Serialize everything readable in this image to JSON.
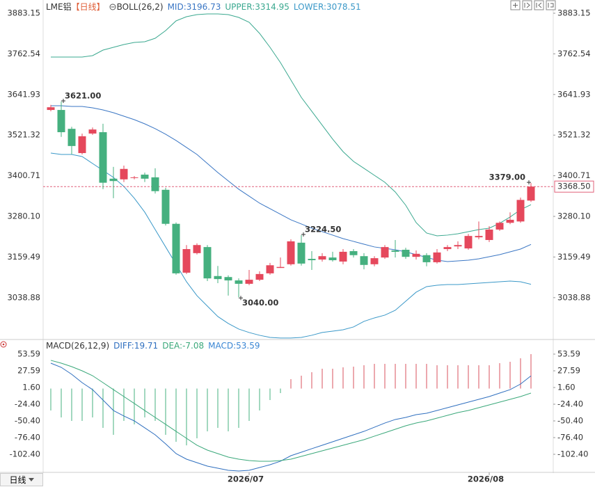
{
  "chart_data": [
    {
      "type": "candlestick",
      "title": "LME铝",
      "period": "【日线】",
      "indicator": "BOLL(26,2)",
      "categories": [
        null,
        null,
        null,
        null,
        null,
        null,
        null,
        null,
        null,
        null,
        null,
        null,
        null,
        null,
        null,
        null,
        null,
        null,
        null,
        "2026/07",
        null,
        null,
        null,
        null,
        null,
        null,
        null,
        null,
        null,
        null,
        null,
        null,
        null,
        null,
        null,
        null,
        null,
        null,
        null,
        null,
        null,
        null,
        "2026/08",
        null,
        null,
        null,
        null
      ],
      "open": [
        3596,
        3596,
        3540,
        3468,
        3526,
        3530,
        3392,
        3390,
        3394,
        3404,
        3396,
        3359,
        3258,
        3113,
        3171,
        3189,
        3103,
        3100,
        3090,
        3080,
        3092,
        3111,
        3127,
        3138,
        3202,
        3154,
        3152,
        3158,
        3146,
        3177,
        3162,
        3138,
        3158,
        3179,
        3181,
        3160,
        3165,
        3144,
        3183,
        3191,
        3185,
        3218,
        3210,
        3241,
        3261,
        3265,
        3327
      ],
      "high": [
        3611,
        3621,
        3546,
        3526,
        3544,
        3555,
        3427,
        3431,
        3400,
        3410,
        3423,
        3365,
        3262,
        3195,
        3200,
        3195,
        3133,
        3105,
        3096,
        3121,
        3117,
        3142,
        3158,
        3212,
        3224.5,
        3177,
        3171,
        3175,
        3183,
        3183,
        3171,
        3162,
        3195,
        3210,
        3187,
        3179,
        3171,
        3183,
        3195,
        3206,
        3228,
        3265,
        3251,
        3265,
        3292,
        3336,
        3379
      ],
      "low": [
        3592,
        3516,
        3464,
        3464,
        3522,
        3361,
        3334,
        3382,
        3390,
        3382,
        3348,
        3253,
        3107,
        3109,
        3167,
        3088,
        3082,
        3045,
        3040,
        3076,
        3088,
        3107,
        3127,
        3134,
        3134,
        3121,
        3146,
        3146,
        3138,
        3158,
        3123,
        3132,
        3154,
        3158,
        3154,
        3152,
        3132,
        3140,
        3177,
        3183,
        3181,
        3212,
        3204,
        3237,
        3257,
        3261,
        3323
      ],
      "close": [
        3604,
        3530,
        3489,
        3518,
        3538,
        3380,
        3385,
        3421,
        3396,
        3392,
        3355,
        3258,
        3111,
        3183,
        3195,
        3096,
        3094,
        3090,
        3080,
        3092,
        3109,
        3135,
        3130,
        3206,
        3140,
        3150,
        3162,
        3150,
        3175,
        3165,
        3136,
        3156,
        3189,
        3175,
        3160,
        3169,
        3144,
        3173,
        3189,
        3195,
        3222,
        3222,
        3241,
        3261,
        3270,
        3329,
        3368.5
      ],
      "high_labels": [
        null,
        "3621.00",
        null,
        null,
        null,
        null,
        null,
        null,
        null,
        null,
        null,
        null,
        null,
        null,
        null,
        null,
        null,
        null,
        null,
        null,
        null,
        null,
        null,
        null,
        "3224.50",
        null,
        null,
        null,
        null,
        null,
        null,
        null,
        null,
        null,
        null,
        null,
        null,
        null,
        null,
        null,
        null,
        null,
        null,
        null,
        null,
        null,
        "3379.00"
      ],
      "low_labels": [
        null,
        null,
        null,
        null,
        null,
        null,
        null,
        null,
        null,
        null,
        null,
        null,
        null,
        null,
        null,
        null,
        null,
        null,
        "3040.00",
        null,
        null,
        null,
        null,
        null,
        null,
        null,
        null,
        null,
        null,
        null,
        null,
        null,
        null,
        null,
        null,
        null,
        null,
        null,
        null,
        null,
        null,
        null,
        null,
        null,
        null,
        null,
        null
      ],
      "up_color": "#e5485c",
      "down_color": "#45b07f",
      "series": [
        {
          "name": "MID:3196.73",
          "color": "#3a76c4",
          "values": [
            3608.5,
            3608.5,
            3606.5,
            3606.5,
            3602.3,
            3596.1,
            3587.9,
            3577.5,
            3567.2,
            3554.8,
            3540.4,
            3523.9,
            3505.3,
            3484.7,
            3464.0,
            3437.2,
            3410.3,
            3385.5,
            3360.8,
            3340.1,
            3319.4,
            3302.9,
            3286.4,
            3269.9,
            3257.5,
            3245.1,
            3234.8,
            3224.5,
            3214.1,
            3205.9,
            3197.6,
            3189.4,
            3185.2,
            3181.1,
            3174.9,
            3166.6,
            3158.4,
            3150.1,
            3146.0,
            3148.0,
            3150.1,
            3154.2,
            3160.4,
            3166.6,
            3174.9,
            3183.1,
            3196.73
          ]
        },
        {
          "name": "UPPER:3314.95",
          "color": "#3aa88f",
          "values": [
            3753.1,
            3753.1,
            3753.1,
            3753.1,
            3757.2,
            3773.7,
            3782.0,
            3790.2,
            3796.4,
            3798.5,
            3808.8,
            3831.5,
            3860.5,
            3872.8,
            3879.0,
            3881.1,
            3881.1,
            3879.0,
            3870.8,
            3856.3,
            3823.3,
            3782.0,
            3736.5,
            3684.9,
            3633.3,
            3592.0,
            3550.7,
            3509.4,
            3472.2,
            3443.3,
            3422.7,
            3402.0,
            3381.4,
            3352.5,
            3313.2,
            3261.6,
            3230.6,
            3222.4,
            3224.5,
            3228.6,
            3234.8,
            3241.0,
            3245.1,
            3259.6,
            3278.2,
            3300.0,
            3314.95
          ]
        },
        {
          "name": "LOWER:3078.51",
          "color": "#3a98c8",
          "values": [
            3468.1,
            3464.0,
            3464.0,
            3457.8,
            3437.1,
            3416.5,
            3395.8,
            3369.0,
            3333.9,
            3292.6,
            3241.0,
            3189.4,
            3137.8,
            3086.1,
            3044.8,
            3013.8,
            2982.8,
            2962.2,
            2945.7,
            2935.4,
            2927.1,
            2920.9,
            2918.9,
            2918.9,
            2920.9,
            2927.1,
            2935.4,
            2939.5,
            2943.6,
            2951.9,
            2968.4,
            2978.7,
            2987.0,
            3001.4,
            3028.3,
            3055.1,
            3071.6,
            3075.8,
            3077.8,
            3077.8,
            3079.9,
            3081.9,
            3084.0,
            3086.1,
            3088.1,
            3086.1,
            3078.51
          ]
        }
      ],
      "last_price": 3368.5,
      "last_label": "3368.50",
      "ylim": [
        2914.6,
        3922.4
      ],
      "yticks": [
        3038.88,
        3159.49,
        {
          "value": 3280.1,
          "label": "3280.10"
        },
        3400.71,
        3521.32,
        3641.93,
        3762.54,
        3883.15
      ]
    },
    {
      "type": "bar",
      "title": "MACD(26,12,9)",
      "up_color": "#d9505c",
      "down_color": "#45b07f",
      "series": [
        {
          "name": "DIFF:19.71",
          "mark": "line",
          "color": "#2f6fbf",
          "values": [
            39.5,
            33.0,
            22.2,
            9.2,
            -1.7,
            -17.9,
            -34.2,
            -42.8,
            -50.4,
            -61.2,
            -72.1,
            -86.2,
            -101.3,
            -110.0,
            -115.4,
            -120.8,
            -124.1,
            -127.3,
            -128.4,
            -127.3,
            -123.0,
            -118.7,
            -113.2,
            -104.6,
            -99.2,
            -93.7,
            -88.3,
            -82.9,
            -77.5,
            -72.1,
            -66.7,
            -60.2,
            -53.7,
            -48.2,
            -45.0,
            -40.7,
            -38.5,
            -34.2,
            -29.8,
            -25.5,
            -21.2,
            -16.8,
            -12.5,
            -7.1,
            -1.7,
            7.0,
            19.71
          ]
        },
        {
          "name": "DEA:-7.08",
          "mark": "line",
          "color": "#3aa87a",
          "values": [
            43.9,
            39.5,
            34.1,
            27.6,
            20.0,
            9.2,
            -1.7,
            -12.5,
            -23.3,
            -34.2,
            -45.0,
            -55.8,
            -66.7,
            -77.5,
            -88.3,
            -95.9,
            -101.3,
            -106.7,
            -110.0,
            -112.2,
            -113.2,
            -113.2,
            -112.2,
            -110.0,
            -105.7,
            -101.3,
            -97.0,
            -92.7,
            -88.3,
            -84.0,
            -79.7,
            -74.2,
            -68.8,
            -63.4,
            -58.0,
            -53.7,
            -50.4,
            -46.1,
            -41.7,
            -37.4,
            -34.2,
            -29.8,
            -25.5,
            -21.2,
            -16.8,
            -12.5,
            -7.08
          ]
        },
        {
          "name": "MACD:53.59",
          "mark": "bar",
          "values": [
            -34.2,
            -45.0,
            -50.4,
            -50.4,
            -45.0,
            -61.2,
            -72.1,
            -50.4,
            -55.8,
            -45.0,
            -50.4,
            -72.1,
            -82.9,
            -88.4,
            -77.5,
            -66.7,
            -61.2,
            -66.7,
            -61.2,
            -50.4,
            -34.2,
            -17.9,
            -7.1,
            14.6,
            20.0,
            25.4,
            30.9,
            30.9,
            33.0,
            34.1,
            36.3,
            38.4,
            38.4,
            38.4,
            38.4,
            38.4,
            38.4,
            36.3,
            36.3,
            36.3,
            36.3,
            36.3,
            36.3,
            39.5,
            41.7,
            47.1,
            53.59
          ]
        }
      ],
      "ylim": [
        -129.5,
        63.35
      ],
      "yticks": [
        {
          "value": -102.4,
          "label": "-102.40"
        },
        {
          "value": -76.4,
          "label": "-76.40"
        },
        {
          "value": -50.4,
          "label": "-50.40"
        },
        {
          "value": -24.4,
          "label": "-24.40"
        },
        {
          "value": 1.6,
          "label": "1.60"
        },
        27.59,
        53.59
      ]
    }
  ],
  "footer": {
    "period": "日线"
  }
}
